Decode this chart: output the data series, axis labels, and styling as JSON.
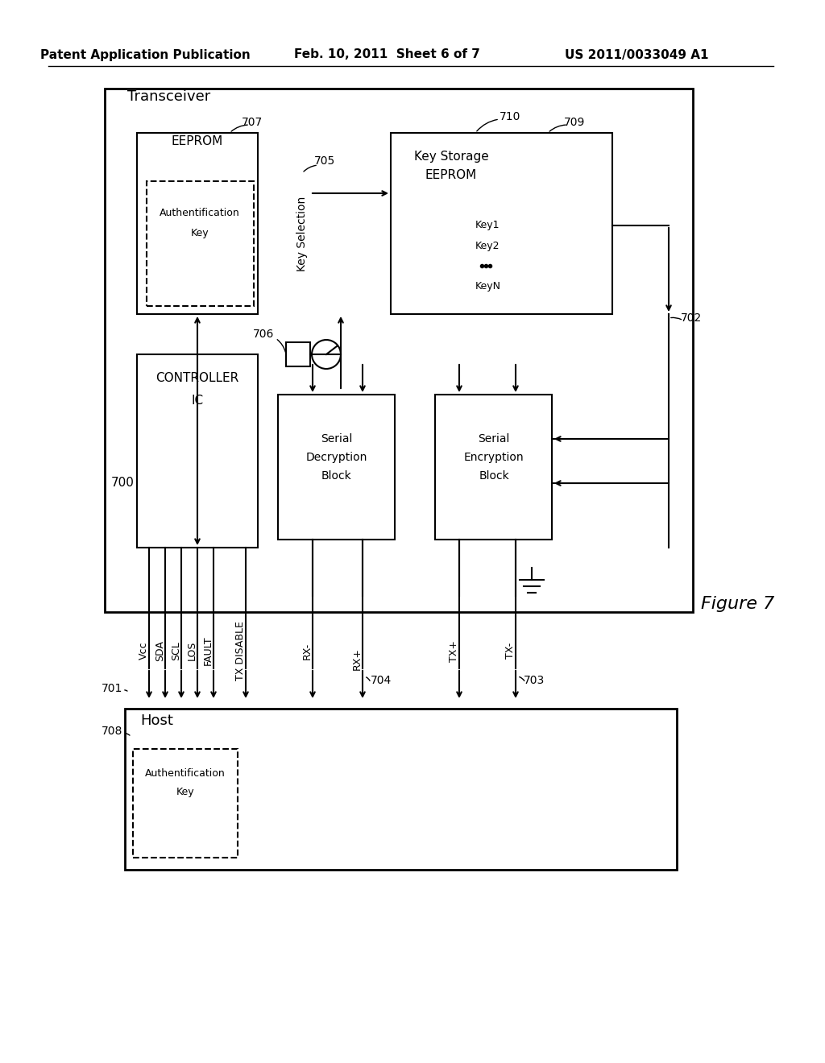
{
  "bg_color": "#ffffff",
  "line_color": "#000000",
  "header_left": "Patent Application Publication",
  "header_mid": "Feb. 10, 2011  Sheet 6 of 7",
  "header_right": "US 2011/0033049 A1",
  "figure_label": "Figure 7",
  "title_transceiver": "Transceiver",
  "title_host": "Host",
  "label_700": "700",
  "label_701": "701",
  "label_702": "702",
  "label_703": "703",
  "label_704": "704",
  "label_705": "705",
  "label_706": "706",
  "label_707": "707",
  "label_708": "708",
  "label_709": "709",
  "label_710": "710",
  "signal_labels": [
    "Vcc",
    "SDA",
    "SCL",
    "LOS",
    "FAULT",
    "TX DISABLE",
    "RX-",
    "RX+",
    "TX+",
    "TX-"
  ]
}
